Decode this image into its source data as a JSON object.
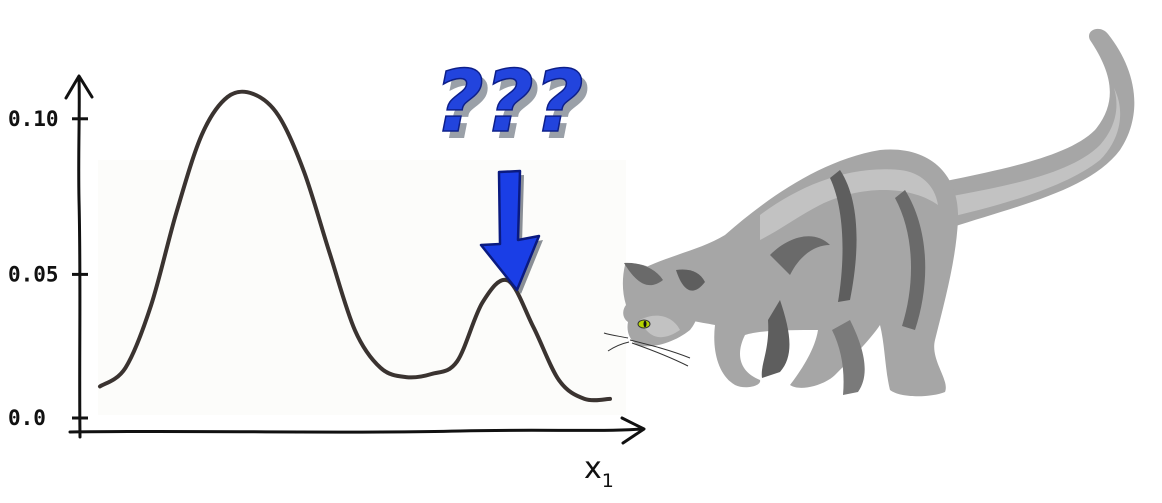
{
  "chart_data": {
    "type": "line",
    "title": "",
    "xlabel": "x",
    "xlabel_subscript": "1",
    "ylabel": "",
    "ylim": [
      0.0,
      0.12
    ],
    "y_ticks": [
      {
        "value": 0.0,
        "label": "0.0"
      },
      {
        "value": 0.05,
        "label": "0.05"
      },
      {
        "value": 0.1,
        "label": "0.10"
      }
    ],
    "grid": false,
    "legend": "none",
    "series": [
      {
        "x": [
          0.0,
          0.05,
          0.1,
          0.15,
          0.2,
          0.25,
          0.3,
          0.35,
          0.4,
          0.45,
          0.5,
          0.55,
          0.6,
          0.65,
          0.7,
          0.75,
          0.8,
          0.85,
          0.9,
          0.95,
          1.0
        ],
        "values": [
          0.014,
          0.02,
          0.04,
          0.07,
          0.095,
          0.107,
          0.108,
          0.101,
          0.083,
          0.057,
          0.032,
          0.02,
          0.017,
          0.018,
          0.022,
          0.041,
          0.048,
          0.033,
          0.016,
          0.01,
          0.01
        ],
        "color": "#3a3330"
      }
    ]
  },
  "annotation": {
    "text": "???",
    "color": "#2244dd",
    "shadow_color": "#9aa0a8",
    "arrow_color": "#1a3ee6",
    "points_to_x": 0.8,
    "points_to_y": 0.048
  },
  "colors": {
    "axis": "#111111",
    "curve": "#3a3330",
    "cat_body": "#a6a6a6",
    "cat_light": "#c2c2c2",
    "cat_dark": "#5e5e5e",
    "cat_eye": "#b6d400"
  }
}
